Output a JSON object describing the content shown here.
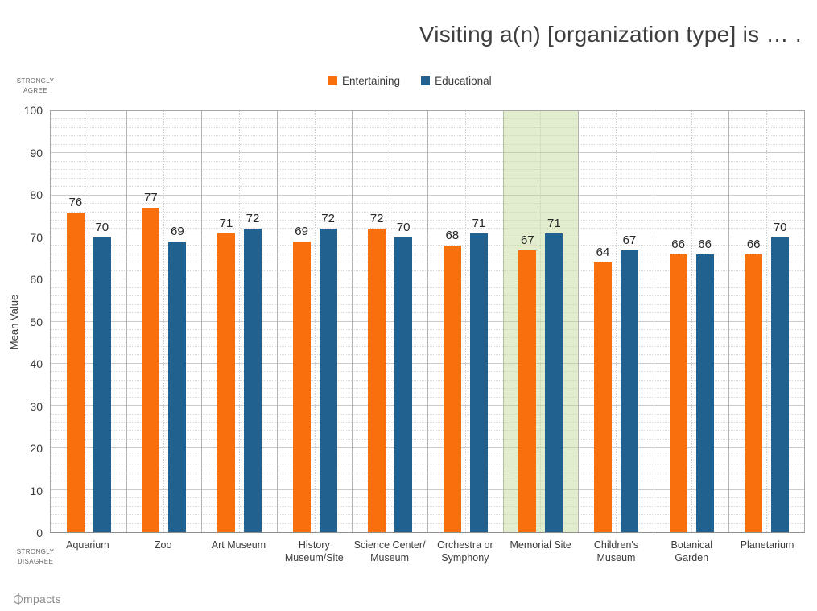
{
  "title": "Visiting a(n) [organization type] is … .",
  "colors": {
    "entertaining": "#F8700D",
    "educational": "#20618F",
    "highlight": "rgba(186,211,135,0.42)"
  },
  "legend": [
    {
      "label": "Entertaining",
      "color_key": "entertaining"
    },
    {
      "label": "Educational",
      "color_key": "educational"
    }
  ],
  "y_axis": {
    "title": "Mean Value",
    "top_caption": "STRONGLY\nAGREE",
    "bottom_caption": "STRONGLY\nDISAGREE",
    "min": 0,
    "max": 100,
    "tick_step": 10,
    "ticks": [
      100,
      90,
      80,
      70,
      60,
      50,
      40,
      30,
      20,
      10,
      0
    ]
  },
  "footer": {
    "logo_text": "mpacts"
  },
  "chart_data": {
    "type": "bar",
    "title": "Visiting a(n) [organization type] is … .",
    "categories": [
      "Aquarium",
      "Zoo",
      "Art Museum",
      "History\nMuseum/Site",
      "Science Center/\nMuseum",
      "Orchestra or\nSymphony",
      "Memorial Site",
      "Children's\nMuseum",
      "Botanical\nGarden",
      "Planetarium"
    ],
    "series": [
      {
        "name": "Entertaining",
        "color": "#F8700D",
        "values": [
          76,
          77,
          71,
          69,
          72,
          68,
          67,
          64,
          66,
          66
        ]
      },
      {
        "name": "Educational",
        "color": "#20618F",
        "values": [
          70,
          69,
          72,
          72,
          70,
          71,
          71,
          67,
          66,
          70
        ]
      }
    ],
    "ylabel": "Mean Value",
    "ylim": [
      0,
      100
    ],
    "grid": true,
    "minor_grid_step": 2,
    "legend_position": "top",
    "highlighted_category": "Memorial Site",
    "highlighted_index": 6
  }
}
